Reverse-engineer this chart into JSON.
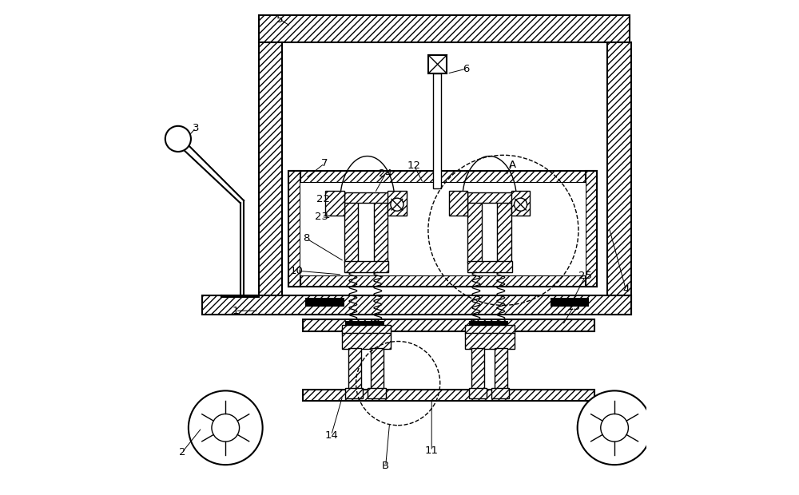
{
  "bg_color": "#ffffff",
  "lc": "#000000",
  "fig_width": 10.0,
  "fig_height": 6.2,
  "dpi": 100,
  "lw_main": 1.5,
  "lw_thin": 1.0,
  "lw_thick": 2.0
}
